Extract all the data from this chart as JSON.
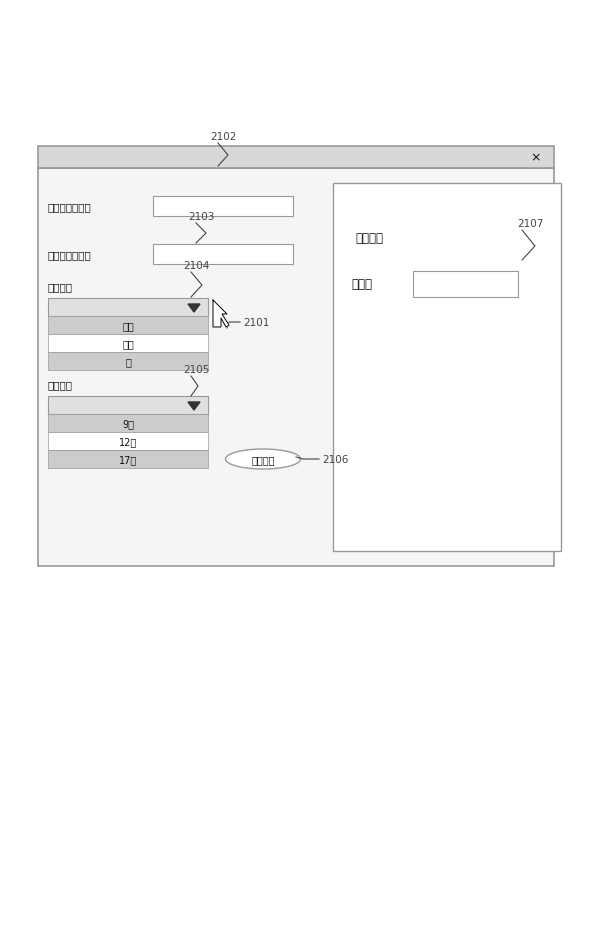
{
  "fig_width": 5.91,
  "fig_height": 9.29,
  "dpi": 100,
  "bg_color": "#ffffff",
  "dialog_border_color": "#999999",
  "dialog_bg": "#f0f0f0",
  "titlebar_bg": "#d8d8d8",
  "body_bg": "#f5f5f5",
  "input_bg": "#ffffff",
  "list_shade": "#cccccc",
  "list_white": "#ffffff",
  "right_panel_bg": "#ffffff",
  "result_box_bg": "#ffffff",
  "button_bg": "#ffffff",
  "text_color": "#111111",
  "annot_color": "#444444",
  "drop_arrow_color": "#333333",
  "weather_items": [
    "晴れ",
    "曇り",
    "雨"
  ],
  "time_items": [
    "9時",
    "12時",
    "17時"
  ],
  "weather_shading": [
    true,
    false,
    true
  ],
  "time_shading": [
    true,
    false,
    true
  ],
  "label_ichi": "第一の色情報：",
  "label_ni": "第二の色情報：",
  "label_tenki": "天候設定",
  "label_jikoku": "時刻設定",
  "label_keisan": "計算結果",
  "label_shikisa": "色差：",
  "button_text": "色差算出",
  "close_text": "×",
  "ref_2101": "2101",
  "ref_2102": "2102",
  "ref_2103": "2103",
  "ref_2104": "2104",
  "ref_2105": "2105",
  "ref_2106": "2106",
  "ref_2107": "2107"
}
